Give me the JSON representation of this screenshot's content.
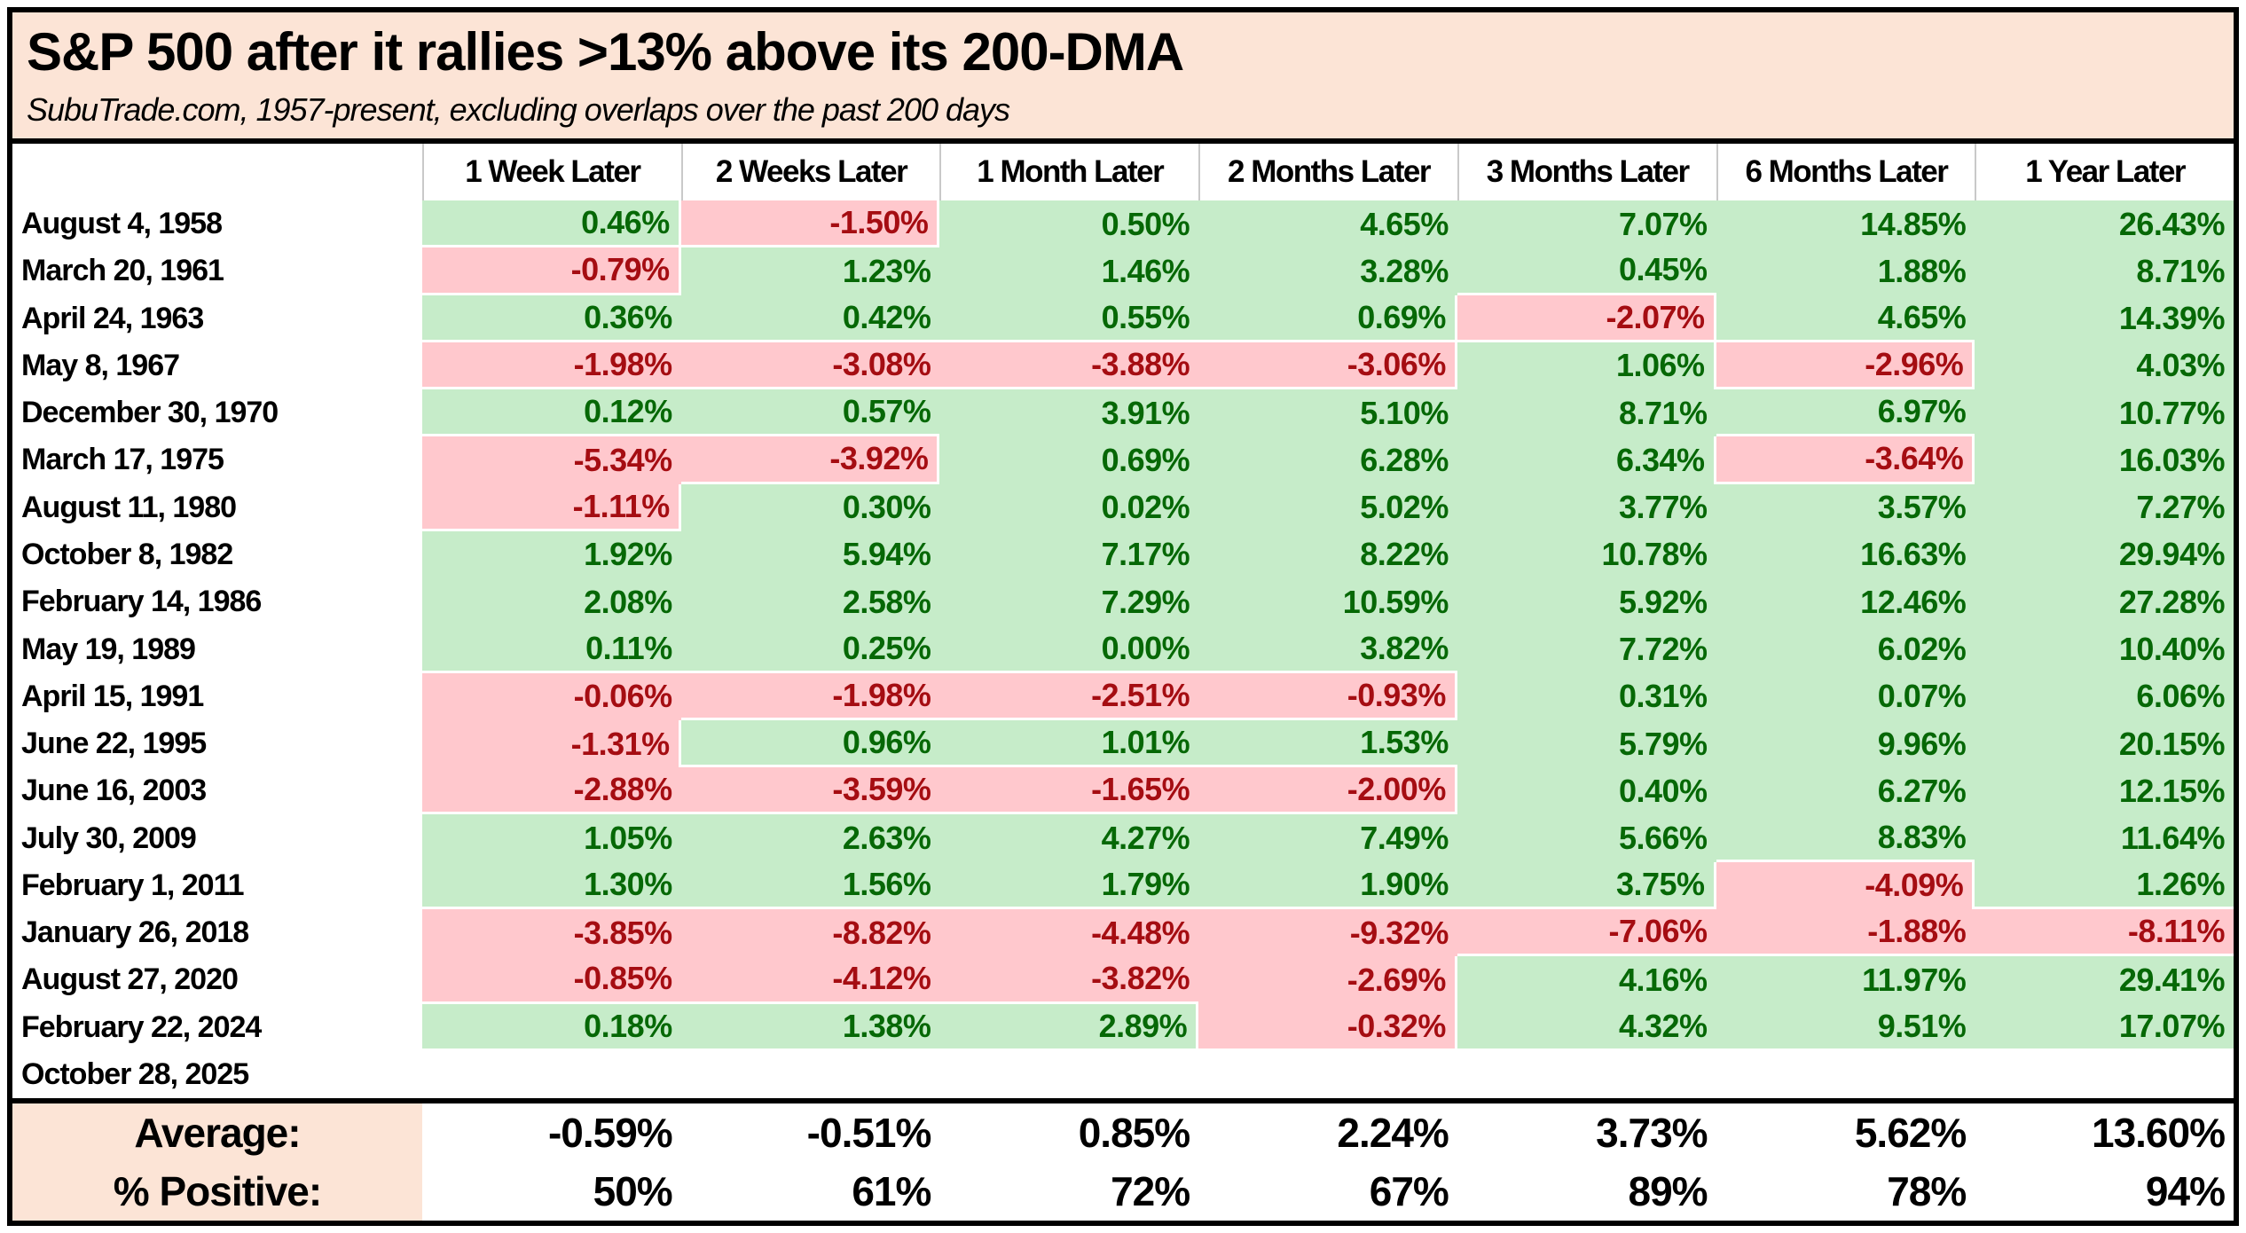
{
  "title": "S&P 500 after it rallies >13% above its 200-DMA",
  "subtitle": "SubuTrade.com, 1957-present, excluding overlaps over the past 200 days",
  "columns": [
    "1 Week Later",
    "2 Weeks Later",
    "1 Month Later",
    "2 Months Later",
    "3 Months Later",
    "6 Months Later",
    "1 Year Later"
  ],
  "rows": [
    {
      "date": "August 4, 1958",
      "values": [
        "0.46%",
        "-1.50%",
        "0.50%",
        "4.65%",
        "7.07%",
        "14.85%",
        "26.43%"
      ]
    },
    {
      "date": "March 20, 1961",
      "values": [
        "-0.79%",
        "1.23%",
        "1.46%",
        "3.28%",
        "0.45%",
        "1.88%",
        "8.71%"
      ]
    },
    {
      "date": "April 24, 1963",
      "values": [
        "0.36%",
        "0.42%",
        "0.55%",
        "0.69%",
        "-2.07%",
        "4.65%",
        "14.39%"
      ]
    },
    {
      "date": "May 8, 1967",
      "values": [
        "-1.98%",
        "-3.08%",
        "-3.88%",
        "-3.06%",
        "1.06%",
        "-2.96%",
        "4.03%"
      ]
    },
    {
      "date": "December 30, 1970",
      "values": [
        "0.12%",
        "0.57%",
        "3.91%",
        "5.10%",
        "8.71%",
        "6.97%",
        "10.77%"
      ]
    },
    {
      "date": "March 17, 1975",
      "values": [
        "-5.34%",
        "-3.92%",
        "0.69%",
        "6.28%",
        "6.34%",
        "-3.64%",
        "16.03%"
      ]
    },
    {
      "date": "August 11, 1980",
      "values": [
        "-1.11%",
        "0.30%",
        "0.02%",
        "5.02%",
        "3.77%",
        "3.57%",
        "7.27%"
      ]
    },
    {
      "date": "October 8, 1982",
      "values": [
        "1.92%",
        "5.94%",
        "7.17%",
        "8.22%",
        "10.78%",
        "16.63%",
        "29.94%"
      ]
    },
    {
      "date": "February 14, 1986",
      "values": [
        "2.08%",
        "2.58%",
        "7.29%",
        "10.59%",
        "5.92%",
        "12.46%",
        "27.28%"
      ]
    },
    {
      "date": "May 19, 1989",
      "values": [
        "0.11%",
        "0.25%",
        "0.00%",
        "3.82%",
        "7.72%",
        "6.02%",
        "10.40%"
      ]
    },
    {
      "date": "April 15, 1991",
      "values": [
        "-0.06%",
        "-1.98%",
        "-2.51%",
        "-0.93%",
        "0.31%",
        "0.07%",
        "6.06%"
      ]
    },
    {
      "date": "June 22, 1995",
      "values": [
        "-1.31%",
        "0.96%",
        "1.01%",
        "1.53%",
        "5.79%",
        "9.96%",
        "20.15%"
      ]
    },
    {
      "date": "June 16, 2003",
      "values": [
        "-2.88%",
        "-3.59%",
        "-1.65%",
        "-2.00%",
        "0.40%",
        "6.27%",
        "12.15%"
      ]
    },
    {
      "date": "July 30, 2009",
      "values": [
        "1.05%",
        "2.63%",
        "4.27%",
        "7.49%",
        "5.66%",
        "8.83%",
        "11.64%"
      ]
    },
    {
      "date": "February 1, 2011",
      "values": [
        "1.30%",
        "1.56%",
        "1.79%",
        "1.90%",
        "3.75%",
        "-4.09%",
        "1.26%"
      ]
    },
    {
      "date": "January 26, 2018",
      "values": [
        "-3.85%",
        "-8.82%",
        "-4.48%",
        "-9.32%",
        "-7.06%",
        "-1.88%",
        "-8.11%"
      ]
    },
    {
      "date": "August 27, 2020",
      "values": [
        "-0.85%",
        "-4.12%",
        "-3.82%",
        "-2.69%",
        "4.16%",
        "11.97%",
        "29.41%"
      ]
    },
    {
      "date": "February 22, 2024",
      "values": [
        "0.18%",
        "1.38%",
        "2.89%",
        "-0.32%",
        "4.32%",
        "9.51%",
        "17.07%"
      ]
    },
    {
      "date": "October 28, 2025",
      "values": [
        "",
        "",
        "",
        "",
        "",
        "",
        ""
      ]
    }
  ],
  "summary": {
    "average_label": "Average:",
    "average": [
      "-0.59%",
      "-0.51%",
      "0.85%",
      "2.24%",
      "3.73%",
      "5.62%",
      "13.60%"
    ],
    "positive_label": "% Positive:",
    "positive": [
      "50%",
      "61%",
      "72%",
      "67%",
      "89%",
      "78%",
      "94%"
    ]
  },
  "colors": {
    "band_bg": "#fce4d6",
    "positive_bg": "#c6ecc9",
    "positive_text": "#066806",
    "negative_bg": "#ffc8cd",
    "negative_text": "#a50d12",
    "header_grid": "#c9c9c9",
    "border": "#000000"
  },
  "chart_data": {
    "type": "table",
    "title": "S&P 500 after it rallies >13% above its 200-DMA",
    "subtitle": "SubuTrade.com, 1957-present, excluding overlaps over the past 200 days",
    "columns": [
      "1 Week Later",
      "2 Weeks Later",
      "1 Month Later",
      "2 Months Later",
      "3 Months Later",
      "6 Months Later",
      "1 Year Later"
    ],
    "unit": "percent",
    "rows": [
      {
        "date": "August 4, 1958",
        "values": [
          0.46,
          -1.5,
          0.5,
          4.65,
          7.07,
          14.85,
          26.43
        ]
      },
      {
        "date": "March 20, 1961",
        "values": [
          -0.79,
          1.23,
          1.46,
          3.28,
          0.45,
          1.88,
          8.71
        ]
      },
      {
        "date": "April 24, 1963",
        "values": [
          0.36,
          0.42,
          0.55,
          0.69,
          -2.07,
          4.65,
          14.39
        ]
      },
      {
        "date": "May 8, 1967",
        "values": [
          -1.98,
          -3.08,
          -3.88,
          -3.06,
          1.06,
          -2.96,
          4.03
        ]
      },
      {
        "date": "December 30, 1970",
        "values": [
          0.12,
          0.57,
          3.91,
          5.1,
          8.71,
          6.97,
          10.77
        ]
      },
      {
        "date": "March 17, 1975",
        "values": [
          -5.34,
          -3.92,
          0.69,
          6.28,
          6.34,
          -3.64,
          16.03
        ]
      },
      {
        "date": "August 11, 1980",
        "values": [
          -1.11,
          0.3,
          0.02,
          5.02,
          3.77,
          3.57,
          7.27
        ]
      },
      {
        "date": "October 8, 1982",
        "values": [
          1.92,
          5.94,
          7.17,
          8.22,
          10.78,
          16.63,
          29.94
        ]
      },
      {
        "date": "February 14, 1986",
        "values": [
          2.08,
          2.58,
          7.29,
          10.59,
          5.92,
          12.46,
          27.28
        ]
      },
      {
        "date": "May 19, 1989",
        "values": [
          0.11,
          0.25,
          0.0,
          3.82,
          7.72,
          6.02,
          10.4
        ]
      },
      {
        "date": "April 15, 1991",
        "values": [
          -0.06,
          -1.98,
          -2.51,
          -0.93,
          0.31,
          0.07,
          6.06
        ]
      },
      {
        "date": "June 22, 1995",
        "values": [
          -1.31,
          0.96,
          1.01,
          1.53,
          5.79,
          9.96,
          20.15
        ]
      },
      {
        "date": "June 16, 2003",
        "values": [
          -2.88,
          -3.59,
          -1.65,
          -2.0,
          0.4,
          6.27,
          12.15
        ]
      },
      {
        "date": "July 30, 2009",
        "values": [
          1.05,
          2.63,
          4.27,
          7.49,
          5.66,
          8.83,
          11.64
        ]
      },
      {
        "date": "February 1, 2011",
        "values": [
          1.3,
          1.56,
          1.79,
          1.9,
          3.75,
          -4.09,
          1.26
        ]
      },
      {
        "date": "January 26, 2018",
        "values": [
          -3.85,
          -8.82,
          -4.48,
          -9.32,
          -7.06,
          -1.88,
          -8.11
        ]
      },
      {
        "date": "August 27, 2020",
        "values": [
          -0.85,
          -4.12,
          -3.82,
          -2.69,
          4.16,
          11.97,
          29.41
        ]
      },
      {
        "date": "February 22, 2024",
        "values": [
          0.18,
          1.38,
          2.89,
          -0.32,
          4.32,
          9.51,
          17.07
        ]
      },
      {
        "date": "October 28, 2025",
        "values": [
          null,
          null,
          null,
          null,
          null,
          null,
          null
        ]
      }
    ],
    "average": [
      -0.59,
      -0.51,
      0.85,
      2.24,
      3.73,
      5.62,
      13.6
    ],
    "percent_positive": [
      50,
      61,
      72,
      67,
      89,
      78,
      94
    ],
    "color_coding": "green cells = positive return, pink cells = negative return"
  }
}
